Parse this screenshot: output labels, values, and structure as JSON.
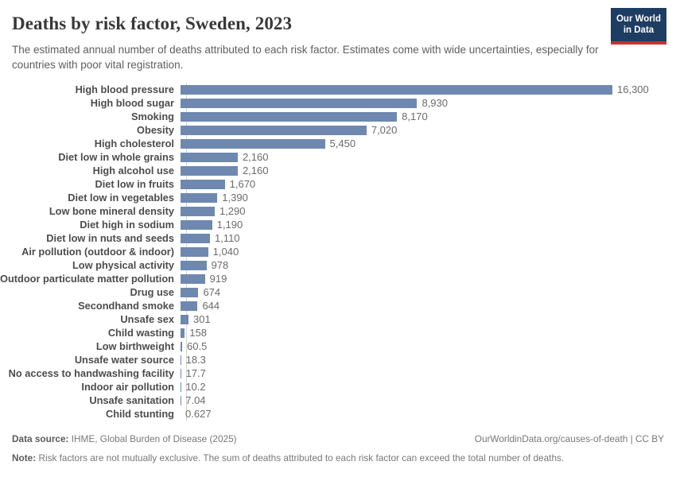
{
  "header": {
    "title": "Deaths by risk factor, Sweden, 2023",
    "subtitle": "The estimated annual number of deaths attributed to each risk factor. Estimates come with wide uncertainties, especially for countries with poor vital registration.",
    "logo": {
      "line1": "Our World",
      "line2": "in Data",
      "bg_color": "#1d3d63",
      "accent_color": "#c5332d"
    }
  },
  "chart_data": {
    "type": "bar",
    "orientation": "horizontal",
    "title": "Deaths by risk factor, Sweden, 2023",
    "xlabel": "",
    "ylabel": "",
    "xlim": [
      0,
      16300
    ],
    "grid": false,
    "bar_color": "#6e88b0",
    "axis_line_color": "#d4d4d4",
    "categories": [
      "High blood pressure",
      "High blood sugar",
      "Smoking",
      "Obesity",
      "High cholesterol",
      "Diet low in whole grains",
      "High alcohol use",
      "Diet low in fruits",
      "Diet low in vegetables",
      "Low bone mineral density",
      "Diet high in sodium",
      "Diet low in nuts and seeds",
      "Air pollution (outdoor & indoor)",
      "Low physical activity",
      "Outdoor particulate matter pollution",
      "Drug use",
      "Secondhand smoke",
      "Unsafe sex",
      "Child wasting",
      "Low birthweight",
      "Unsafe water source",
      "No access to handwashing facility",
      "Indoor air pollution",
      "Unsafe sanitation",
      "Child stunting"
    ],
    "values": [
      16300,
      8930,
      8170,
      7020,
      5450,
      2160,
      2160,
      1670,
      1390,
      1290,
      1190,
      1110,
      1040,
      978,
      919,
      674,
      644,
      301,
      158,
      60.5,
      18.3,
      17.7,
      10.2,
      7.04,
      0.627
    ],
    "value_labels": [
      "16,300",
      "8,930",
      "8,170",
      "7,020",
      "5,450",
      "2,160",
      "2,160",
      "1,670",
      "1,390",
      "1,290",
      "1,190",
      "1,110",
      "1,040",
      "978",
      "919",
      "674",
      "644",
      "301",
      "158",
      "60.5",
      "18.3",
      "17.7",
      "10.2",
      "7.04",
      "0.627"
    ]
  },
  "footer": {
    "source_label": "Data source:",
    "source_text": "IHME, Global Burden of Disease (2025)",
    "attribution": "OurWorldinData.org/causes-of-death | CC BY",
    "note_label": "Note:",
    "note_text": "Risk factors are not mutually exclusive. The sum of deaths attributed to each risk factor can exceed the total number of deaths."
  }
}
